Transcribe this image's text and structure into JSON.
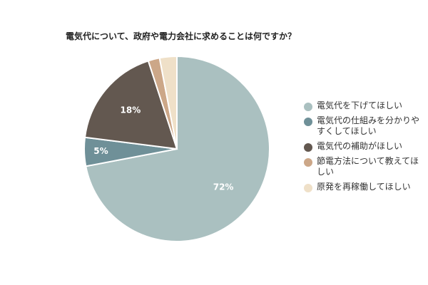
{
  "chart_data": {
    "type": "pie",
    "title": "電気代について、政府や電力会社に求めることは何ですか？",
    "legend_position": "right",
    "slices": [
      {
        "label": "電気代を下げてほしい",
        "value": 72,
        "value_label": "72%",
        "color": "#aac0c0"
      },
      {
        "label": "電気代の仕組みを分かりやすくしてほしい",
        "value": 5,
        "value_label": "5%",
        "color": "#6f9098"
      },
      {
        "label": "電気代の補助がほしい",
        "value": 18,
        "value_label": "18%",
        "color": "#635850"
      },
      {
        "label": "節電方法について教えてほしい",
        "value": 2,
        "value_label": "",
        "color": "#cca788"
      },
      {
        "label": "原発を再稼働してほしい",
        "value": 3,
        "value_label": "",
        "color": "#efe0c8"
      }
    ]
  }
}
